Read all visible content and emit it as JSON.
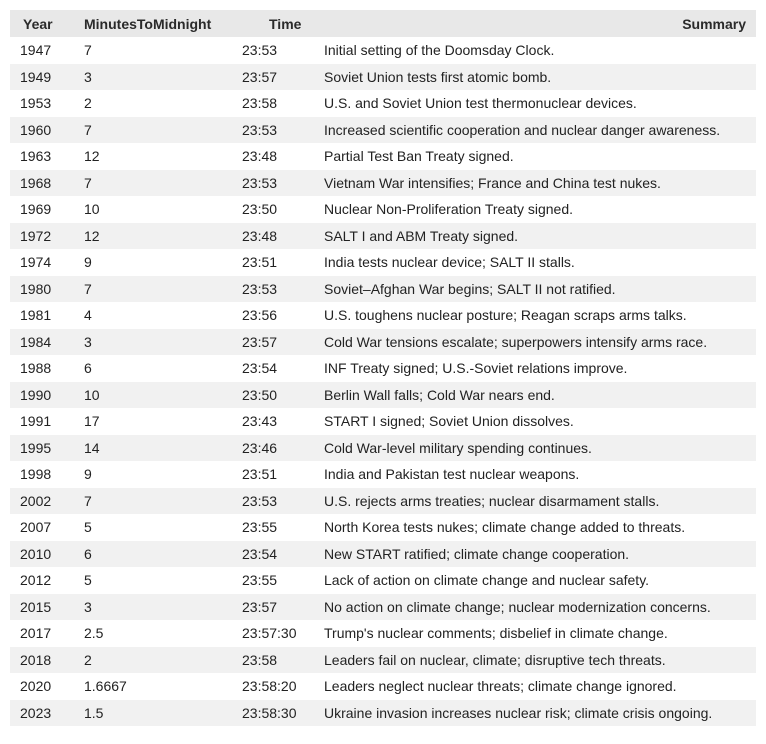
{
  "table": {
    "headers": [
      "Year",
      "MinutesToMidnight",
      "Time",
      "Summary"
    ],
    "rows": [
      [
        "1947",
        "7",
        "23:53",
        "Initial setting of the Doomsday Clock."
      ],
      [
        "1949",
        "3",
        "23:57",
        "Soviet Union tests first atomic bomb."
      ],
      [
        "1953",
        "2",
        "23:58",
        "U.S. and Soviet Union test thermonuclear devices."
      ],
      [
        "1960",
        "7",
        "23:53",
        "Increased scientific cooperation and nuclear danger awareness."
      ],
      [
        "1963",
        "12",
        "23:48",
        "Partial Test Ban Treaty signed."
      ],
      [
        "1968",
        "7",
        "23:53",
        "Vietnam War intensifies; France and China test nukes."
      ],
      [
        "1969",
        "10",
        "23:50",
        "Nuclear Non-Proliferation Treaty signed."
      ],
      [
        "1972",
        "12",
        "23:48",
        "SALT I and ABM Treaty signed."
      ],
      [
        "1974",
        "9",
        "23:51",
        "India tests nuclear device; SALT II stalls."
      ],
      [
        "1980",
        "7",
        "23:53",
        "Soviet–Afghan War begins; SALT II not ratified."
      ],
      [
        "1981",
        "4",
        "23:56",
        "U.S. toughens nuclear posture; Reagan scraps arms talks."
      ],
      [
        "1984",
        "3",
        "23:57",
        "Cold War tensions escalate; superpowers intensify arms race."
      ],
      [
        "1988",
        "6",
        "23:54",
        "INF Treaty signed; U.S.-Soviet relations improve."
      ],
      [
        "1990",
        "10",
        "23:50",
        "Berlin Wall falls; Cold War nears end."
      ],
      [
        "1991",
        "17",
        "23:43",
        "START I signed; Soviet Union dissolves."
      ],
      [
        "1995",
        "14",
        "23:46",
        "Cold War-level military spending continues."
      ],
      [
        "1998",
        "9",
        "23:51",
        "India and Pakistan test nuclear weapons."
      ],
      [
        "2002",
        "7",
        "23:53",
        "U.S. rejects arms treaties; nuclear disarmament stalls."
      ],
      [
        "2007",
        "5",
        "23:55",
        "North Korea tests nukes; climate change added to threats."
      ],
      [
        "2010",
        "6",
        "23:54",
        "New START ratified; climate change cooperation."
      ],
      [
        "2012",
        "5",
        "23:55",
        "Lack of action on climate change and nuclear safety."
      ],
      [
        "2015",
        "3",
        "23:57",
        "No action on climate change; nuclear modernization concerns."
      ],
      [
        "2017",
        "2.5",
        "23:57:30",
        "Trump's nuclear comments; disbelief in climate change."
      ],
      [
        "2018",
        "2",
        "23:58",
        "Leaders fail on nuclear, climate; disruptive tech threats."
      ],
      [
        "2020",
        "1.6667",
        "23:58:20",
        "Leaders neglect nuclear threats; climate change ignored."
      ],
      [
        "2023",
        "1.5",
        "23:58:30",
        "Ukraine invasion increases nuclear risk; climate crisis ongoing."
      ]
    ]
  }
}
